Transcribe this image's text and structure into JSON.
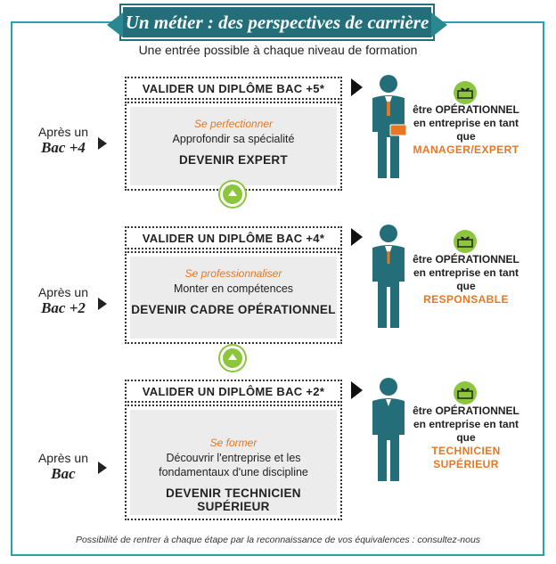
{
  "title": "Un métier : des perspectives de carrière",
  "subtitle": "Une entrée possible à chaque niveau de formation",
  "rows": [
    {
      "validate": "VALIDER UN DIPLÔME BAC +5*",
      "after_l1": "Après un",
      "after_l2": "Bac +4",
      "kicker": "Se perfectionner",
      "desc": "Approfondir sa spécialité",
      "become": "DEVENIR EXPERT",
      "result_text": "être OPÉRATIONNEL en entreprise en tant que",
      "result_role": "MANAGER/EXPERT"
    },
    {
      "validate": "VALIDER UN DIPLÔME BAC +4*",
      "after_l1": "Après un",
      "after_l2": "Bac +2",
      "kicker": "Se professionnaliser",
      "desc": "Monter en compétences",
      "become": "DEVENIR CADRE OPÉRATIONNEL",
      "result_text": "être OPÉRATIONNEL en entreprise en tant que",
      "result_role": "RESPONSABLE"
    },
    {
      "validate": "VALIDER UN DIPLÔME BAC +2*",
      "after_l1": "Après un",
      "after_l2": "Bac",
      "kicker": "Se former",
      "desc": "Découvrir l'entreprise et les fondamentaux d'une discipline",
      "become": "DEVENIR TECHNICIEN SUPÉRIEUR",
      "result_text": "être OPÉRATIONNEL en entreprise en tant que",
      "result_role": "TECHNICIEN SUPÉRIEUR"
    }
  ],
  "footer": "Possibilité de rentrer à chaque étape par la reconnaissance de vos équivalences : consultez-nous",
  "colors": {
    "teal": "#236e78",
    "frame": "#2aa2ad",
    "orange": "#e87722",
    "green": "#8cc63f",
    "gray_box": "#ececec"
  }
}
